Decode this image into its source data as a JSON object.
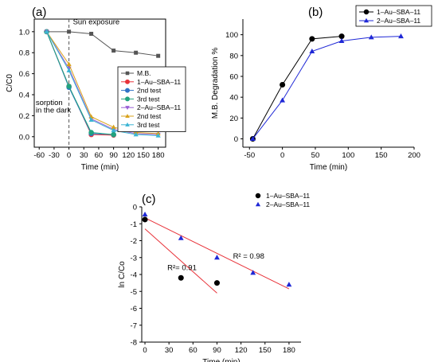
{
  "chart_data": [
    {
      "panel": "(a)",
      "type": "line",
      "xlabel": "Time (min)",
      "ylabel": "C/C0",
      "xlim": [
        -70,
        195
      ],
      "ylim": [
        -0.1,
        1.12
      ],
      "xticks": [
        -60,
        -30,
        0,
        30,
        60,
        90,
        120,
        150,
        180
      ],
      "yticks": [
        0.0,
        0.2,
        0.4,
        0.6,
        0.8,
        1.0
      ],
      "ytick_labels": [
        "0.0",
        "0.2",
        "0.4",
        "0.6",
        "0.8",
        "1.0"
      ],
      "vline_x": 0,
      "annotations": [
        {
          "text": "Sun exposure",
          "x": 8,
          "y": 1.07
        },
        {
          "text": "sorption",
          "x": -67,
          "y": 0.3
        },
        {
          "text": "in the dark",
          "x": -67,
          "y": 0.23
        }
      ],
      "legend_position": "right",
      "series": [
        {
          "name": "M.B.",
          "color": "#555555",
          "marker": "square",
          "x": [
            -45,
            0,
            45,
            90,
            135,
            180
          ],
          "y": [
            1.0,
            1.0,
            0.98,
            0.82,
            0.8,
            0.77
          ]
        },
        {
          "name": "1–Au–SBA–11",
          "color": "#e8333a",
          "marker": "circle",
          "x": [
            -45,
            0,
            45,
            90
          ],
          "y": [
            1.0,
            0.48,
            0.02,
            0.015
          ]
        },
        {
          "name": "2nd test",
          "color": "#2f72c6",
          "marker": "circle",
          "x": [
            -45,
            0,
            45,
            90
          ],
          "y": [
            1.0,
            0.47,
            0.03,
            0.02
          ]
        },
        {
          "name": "3rd test",
          "color": "#21a37f",
          "marker": "circle",
          "x": [
            -45,
            0,
            45,
            90
          ],
          "y": [
            1.0,
            0.48,
            0.04,
            0.02
          ]
        },
        {
          "name": "2–Au–SBA–11",
          "color": "#9a5fd6",
          "marker": "tri-down",
          "x": [
            -45,
            0,
            45,
            90,
            135,
            180
          ],
          "y": [
            1.0,
            0.65,
            0.17,
            0.07,
            0.03,
            0.02
          ]
        },
        {
          "name": "2nd test",
          "color": "#d9a21b",
          "marker": "tri-up",
          "x": [
            -45,
            0,
            45,
            90,
            135,
            180
          ],
          "y": [
            1.0,
            0.69,
            0.19,
            0.09,
            0.04,
            0.03
          ]
        },
        {
          "name": "3rd test",
          "color": "#3ab4d4",
          "marker": "tri-up",
          "x": [
            -45,
            0,
            45,
            90,
            135,
            180
          ],
          "y": [
            1.0,
            0.63,
            0.16,
            0.06,
            0.02,
            0.01
          ]
        }
      ]
    },
    {
      "panel": "(b)",
      "type": "line",
      "xlabel": "Time (min)",
      "ylabel": "M.B. Degradation %",
      "xlim": [
        -60,
        200
      ],
      "ylim": [
        -8,
        115
      ],
      "xticks": [
        -50,
        0,
        50,
        100,
        150,
        200
      ],
      "yticks": [
        0,
        20,
        40,
        60,
        80,
        100
      ],
      "legend_position": "top-right",
      "series": [
        {
          "name": "1–Au–SBA–11",
          "color": "#000000",
          "marker": "circle",
          "x": [
            -45,
            0,
            45,
            90
          ],
          "y": [
            0,
            52,
            96,
            98.5
          ]
        },
        {
          "name": "2–Au–SBA–11",
          "color": "#1f28d6",
          "marker": "tri-up",
          "x": [
            -45,
            0,
            45,
            90,
            135,
            180
          ],
          "y": [
            0,
            37,
            84,
            94,
            97.5,
            98.5
          ]
        }
      ]
    },
    {
      "panel": "(c)",
      "type": "scatter",
      "xlabel": "Time (min)",
      "ylabel": "ln C/Co",
      "xlim": [
        -4,
        195
      ],
      "ylim": [
        -8,
        0
      ],
      "xticks": [
        0,
        30,
        60,
        90,
        120,
        150,
        180
      ],
      "yticks": [
        0,
        -1,
        -2,
        -3,
        -4,
        -5,
        -6,
        -7,
        -8
      ],
      "legend_position": "top-right",
      "annotations": [
        {
          "text": "R²= 0.91",
          "x": 28,
          "y": -3.75
        },
        {
          "text": "R² = 0.98",
          "x": 110,
          "y": -3.05
        }
      ],
      "series": [
        {
          "name": "1–Au–SBA–11",
          "color": "#000000",
          "marker": "circle",
          "x": [
            0,
            45,
            90
          ],
          "y": [
            -0.75,
            -4.2,
            -4.5
          ]
        },
        {
          "name": "2–Au–SBA–11",
          "color": "#1f28d6",
          "marker": "tri-up",
          "x": [
            0,
            45,
            90,
            135,
            180
          ],
          "y": [
            -0.45,
            -1.85,
            -3.0,
            -3.9,
            -4.6
          ]
        }
      ],
      "fit_lines": [
        {
          "color": "#e8333a",
          "x": [
            0,
            90
          ],
          "y": [
            -1.3,
            -5.1
          ]
        },
        {
          "color": "#e8333a",
          "x": [
            0,
            180
          ],
          "y": [
            -0.65,
            -4.85
          ]
        }
      ]
    }
  ]
}
